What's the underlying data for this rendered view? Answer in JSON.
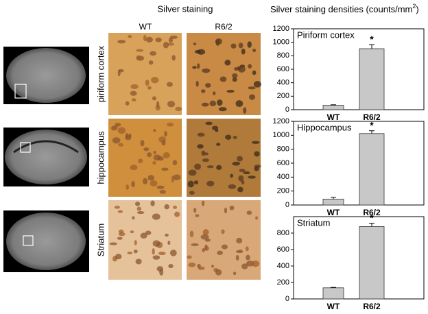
{
  "figure": {
    "left_title": "Silver staining",
    "right_title_parts": [
      "Silver staining densities (counts/mm",
      "2",
      ")"
    ],
    "columns": [
      "WT",
      "R6/2"
    ],
    "rows": [
      "piriform cortex",
      "hippocampus",
      "Striatum"
    ]
  },
  "chart_data": [
    {
      "type": "bar",
      "title": "Piriform cortex",
      "categories": [
        "WT",
        "R6/2"
      ],
      "values": [
        65,
        905
      ],
      "errors": [
        8,
        60
      ],
      "significance": [
        null,
        "*"
      ],
      "color": "#c8c8c8",
      "ylim": [
        0,
        1200
      ],
      "yticks": [
        0,
        200,
        400,
        600,
        800,
        1000,
        1200
      ]
    },
    {
      "type": "bar",
      "title": "Hippocampus",
      "categories": [
        "WT",
        "R6/2"
      ],
      "values": [
        85,
        1025
      ],
      "errors": [
        25,
        40
      ],
      "significance": [
        null,
        "*"
      ],
      "color": "#c8c8c8",
      "ylim": [
        0,
        1200
      ],
      "yticks": [
        0,
        200,
        400,
        600,
        800,
        1000,
        1200
      ]
    },
    {
      "type": "bar",
      "title": "Striatum",
      "categories": [
        "WT",
        "R6/2"
      ],
      "values": [
        135,
        880
      ],
      "errors": [
        5,
        40
      ],
      "significance": [
        null,
        "*"
      ],
      "color": "#c8c8c8",
      "ylim": [
        0,
        1000
      ],
      "yticks": [
        0,
        200,
        400,
        600,
        800
      ]
    }
  ]
}
